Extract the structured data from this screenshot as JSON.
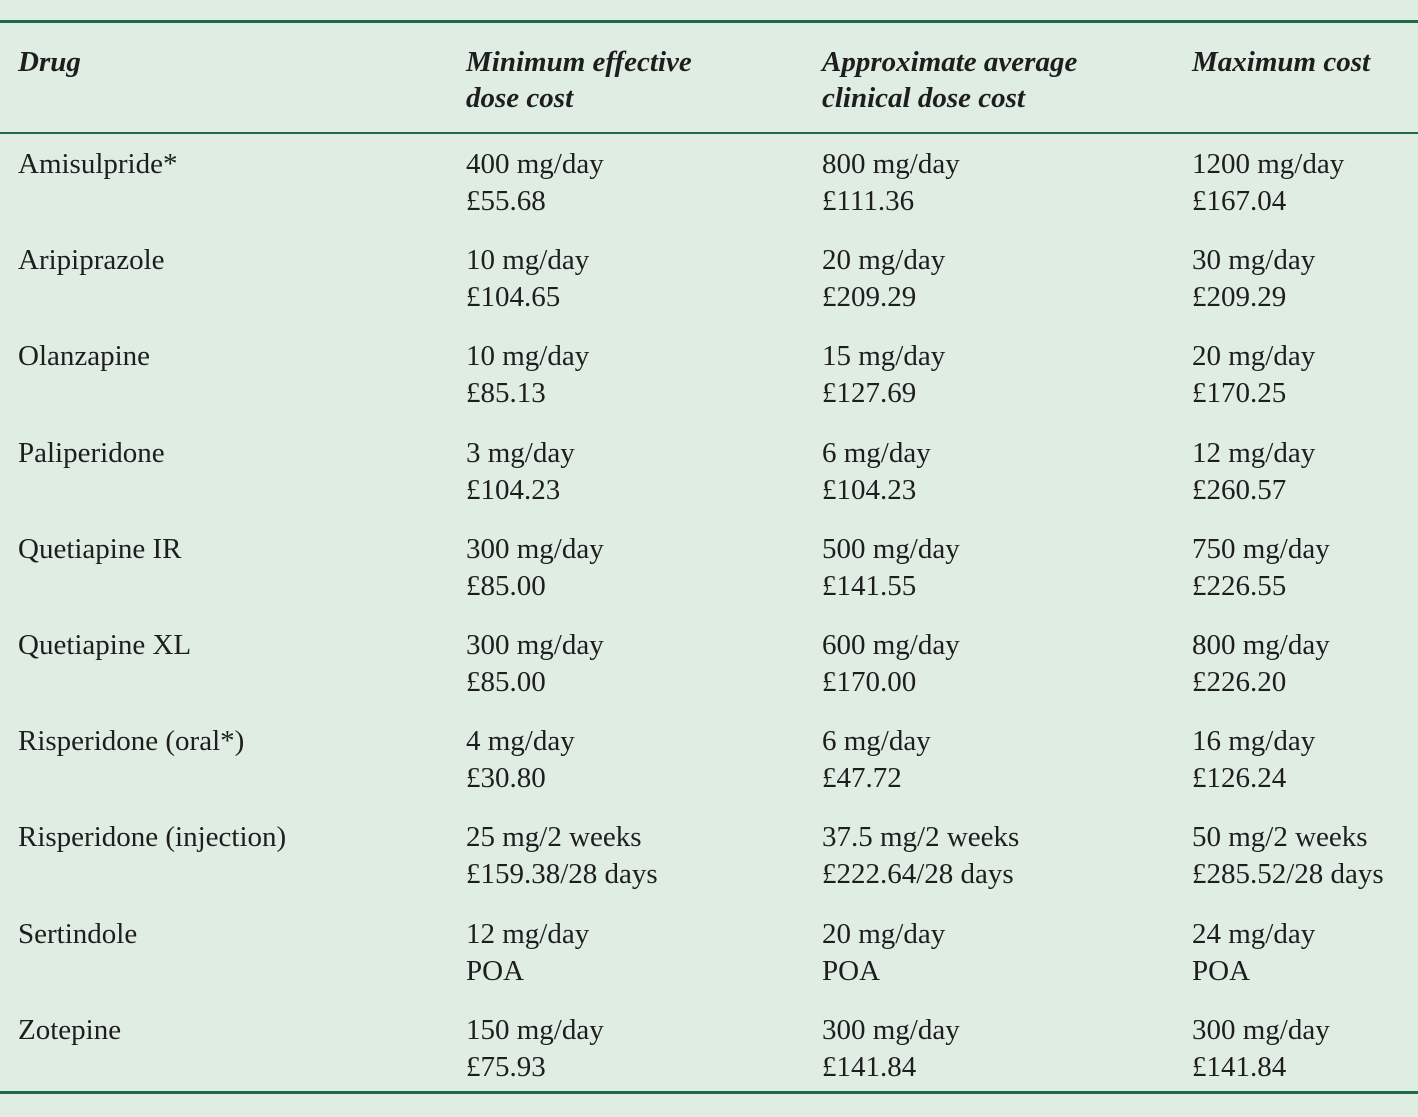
{
  "table": {
    "header": [
      [
        "Drug"
      ],
      [
        "Minimum effective",
        "dose cost"
      ],
      [
        "Approximate average",
        "clinical dose cost"
      ],
      [
        "Maximum cost"
      ]
    ],
    "rows": [
      [
        "Amisulpride*",
        [
          "400 mg/day",
          "£55.68"
        ],
        [
          "800 mg/day",
          "£111.36"
        ],
        [
          "1200 mg/day",
          "£167.04"
        ]
      ],
      [
        "Aripiprazole",
        [
          "10 mg/day",
          "£104.65"
        ],
        [
          "20 mg/day",
          "£209.29"
        ],
        [
          "30 mg/day",
          "£209.29"
        ]
      ],
      [
        "Olanzapine",
        [
          "10 mg/day",
          "£85.13"
        ],
        [
          "15 mg/day",
          "£127.69"
        ],
        [
          "20 mg/day",
          "£170.25"
        ]
      ],
      [
        "Paliperidone",
        [
          "3 mg/day",
          "£104.23"
        ],
        [
          "6 mg/day",
          "£104.23"
        ],
        [
          "12 mg/day",
          "£260.57"
        ]
      ],
      [
        "Quetiapine IR",
        [
          "300 mg/day",
          "£85.00"
        ],
        [
          "500 mg/day",
          "£141.55"
        ],
        [
          "750 mg/day",
          "£226.55"
        ]
      ],
      [
        "Quetiapine XL",
        [
          "300 mg/day",
          "£85.00"
        ],
        [
          "600 mg/day",
          "£170.00"
        ],
        [
          "800 mg/day",
          "£226.20"
        ]
      ],
      [
        "Risperidone (oral*)",
        [
          "4 mg/day",
          "£30.80"
        ],
        [
          "6 mg/day",
          "£47.72"
        ],
        [
          "16 mg/day",
          "£126.24"
        ]
      ],
      [
        "Risperidone (injection)",
        [
          "25 mg/2 weeks",
          "£159.38/28 days"
        ],
        [
          "37.5 mg/2 weeks",
          "£222.64/28 days"
        ],
        [
          "50 mg/2 weeks",
          "£285.52/28 days"
        ]
      ],
      [
        "Sertindole",
        [
          "12 mg/day",
          "POA"
        ],
        [
          "20 mg/day",
          "POA"
        ],
        [
          "24 mg/day",
          "POA"
        ]
      ],
      [
        "Zotepine",
        [
          "150 mg/day",
          "£75.93"
        ],
        [
          "300 mg/day",
          "£141.84"
        ],
        [
          "300 mg/day",
          "£141.84"
        ]
      ]
    ]
  }
}
